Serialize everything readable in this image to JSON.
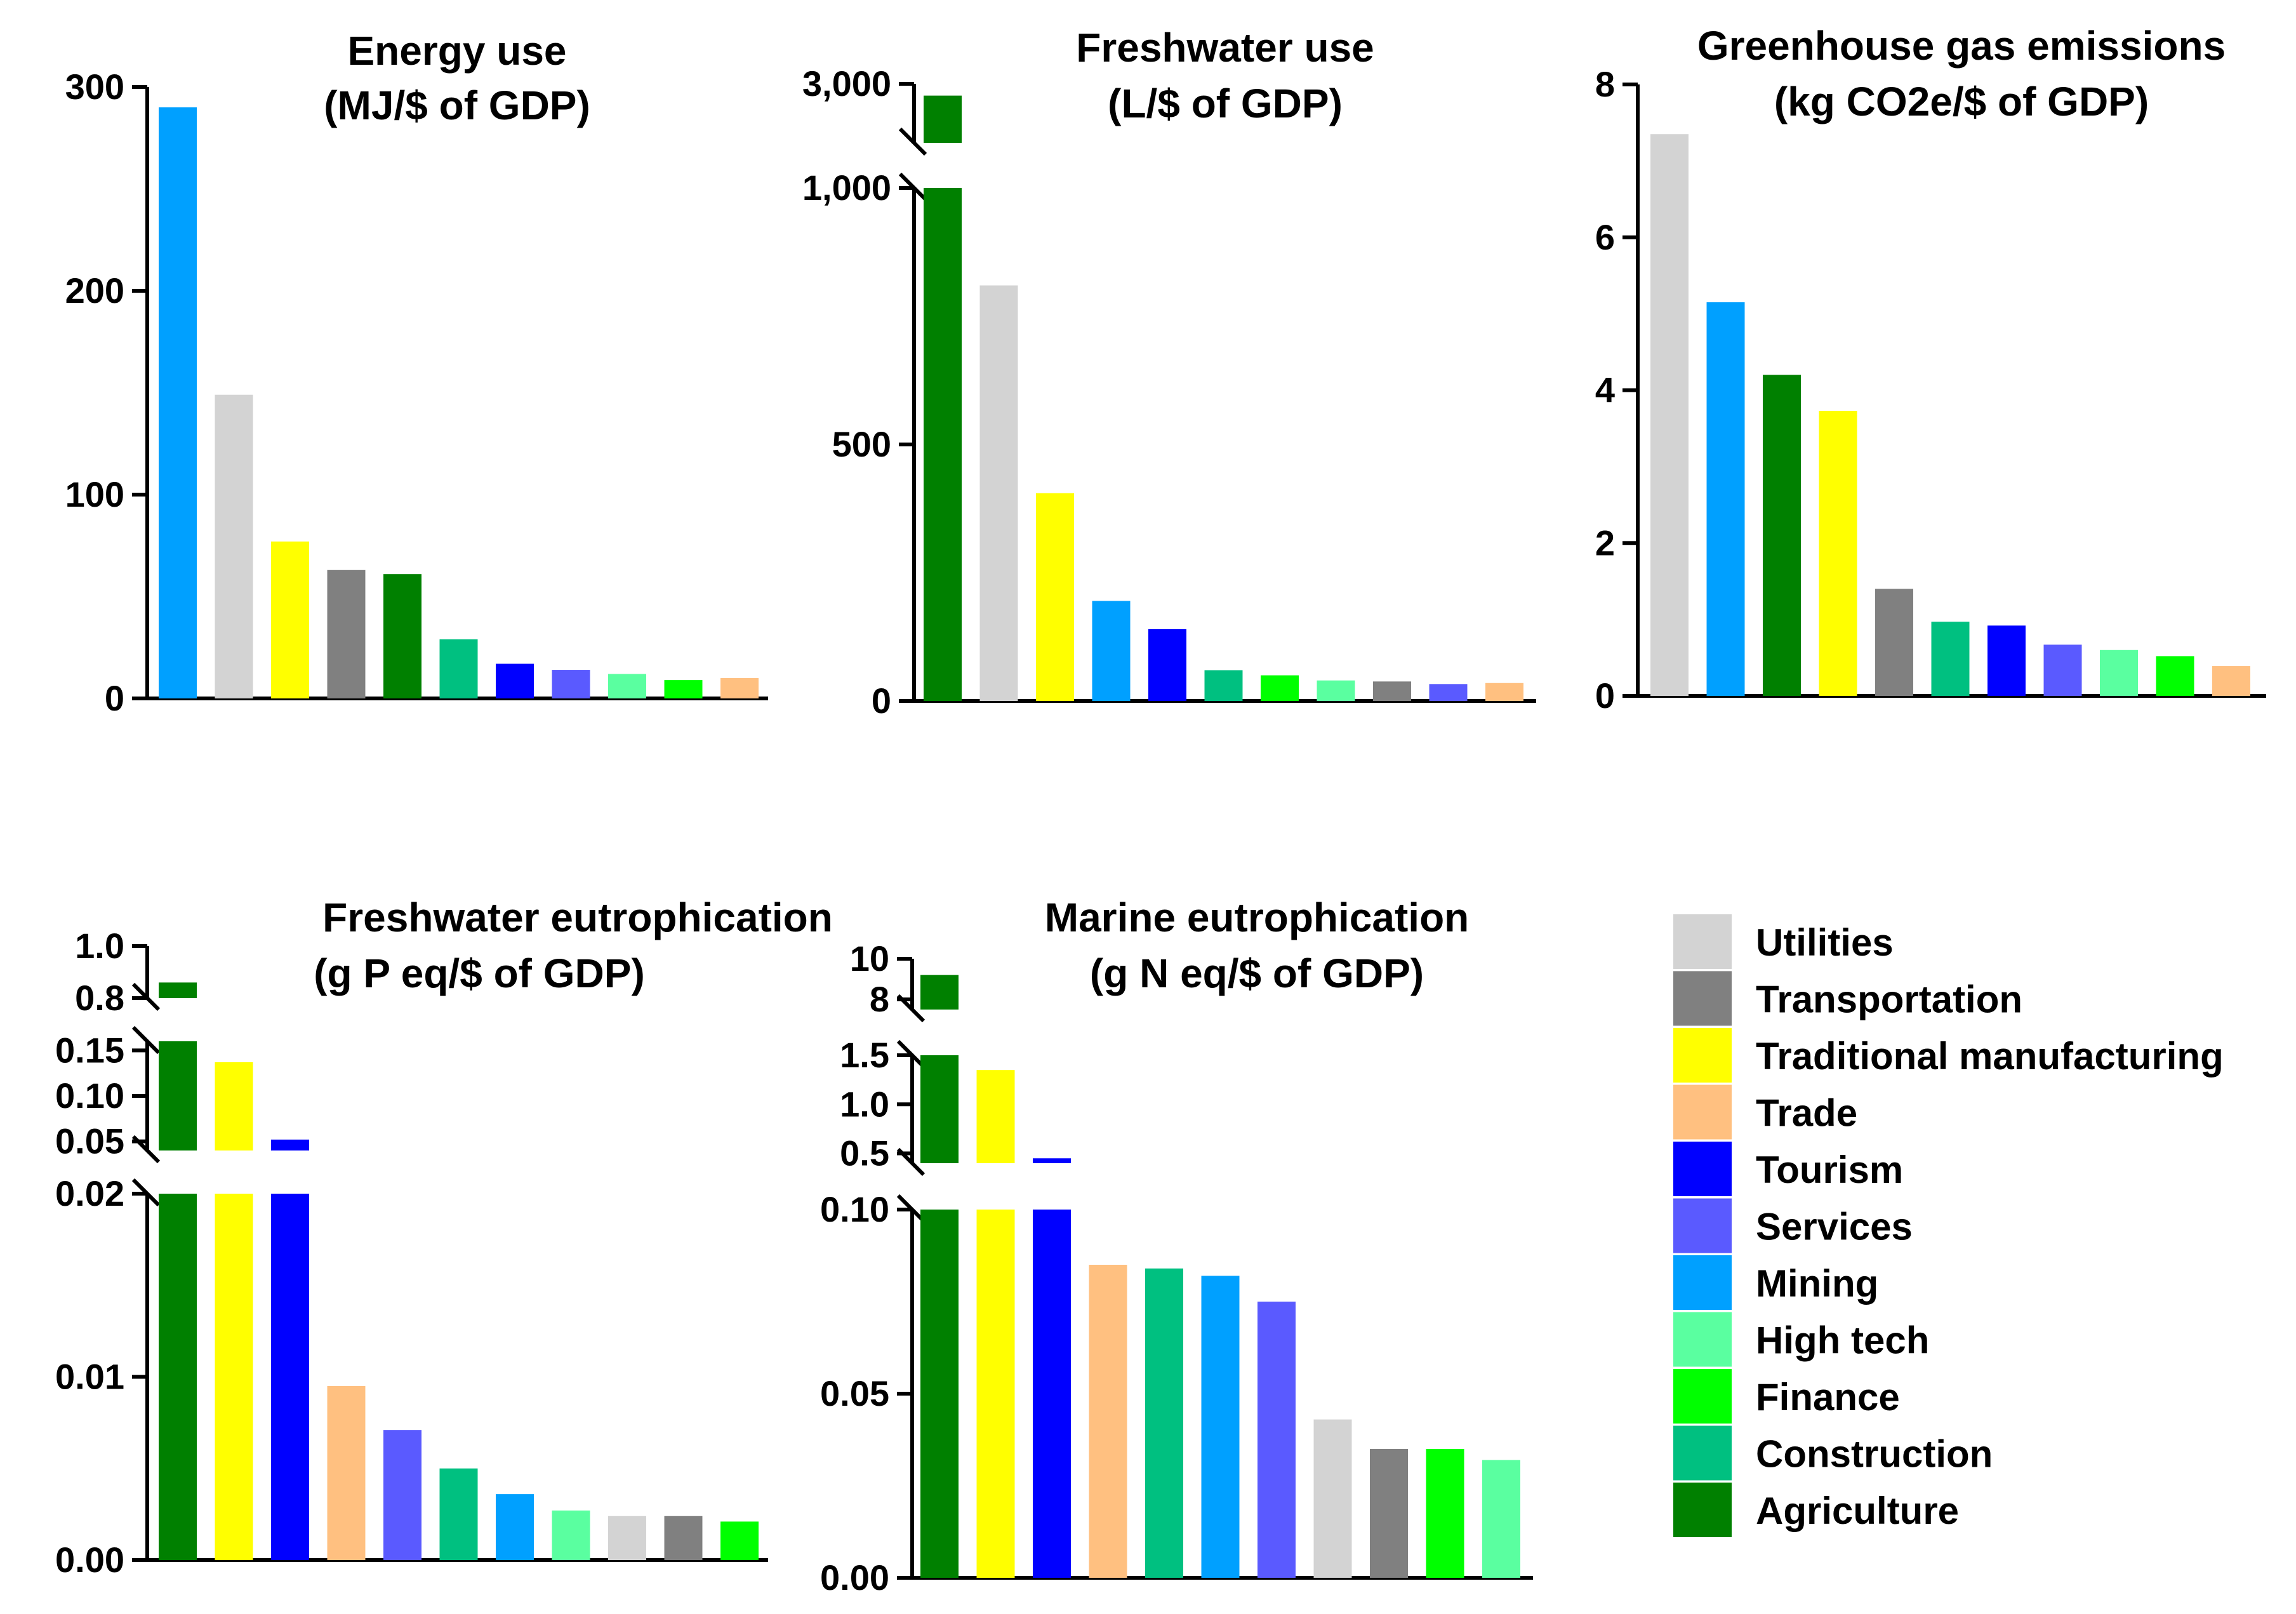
{
  "colors": {
    "Utilities": "#d3d3d3",
    "Transportation": "#808080",
    "Traditional manufacturing": "#ffff00",
    "Trade": "#ffc080",
    "Tourism": "#0000ff",
    "Services": "#5a5aff",
    "Mining": "#00a0ff",
    "High tech": "#5affa0",
    "Finance": "#00ff00",
    "Construction": "#00c080",
    "Agriculture": "#008000"
  },
  "legend": {
    "items": [
      "Utilities",
      "Transportation",
      "Traditional manufacturing",
      "Trade",
      "Tourism",
      "Services",
      "Mining",
      "High tech",
      "Finance",
      "Construction",
      "Agriculture"
    ]
  },
  "chart_data": [
    {
      "type": "bar",
      "title_lines": [
        "Energy use",
        "(MJ/$ of GDP)"
      ],
      "categories": [
        "Mining",
        "Utilities",
        "Traditional manufacturing",
        "Transportation",
        "Agriculture",
        "Construction",
        "Tourism",
        "Services",
        "High tech",
        "Finance",
        "Trade"
      ],
      "values": [
        290,
        149,
        77,
        63,
        61,
        29,
        17,
        14,
        12,
        9,
        10
      ],
      "ylim": [
        0,
        300
      ],
      "yticks": [
        0,
        100,
        200,
        300
      ],
      "ytick_labels": [
        "0",
        "100",
        "200",
        "300"
      ],
      "xlabel": "",
      "ylabel": ""
    },
    {
      "type": "bar",
      "title_lines": [
        "Freshwater use",
        "(L/$ of GDP)"
      ],
      "categories": [
        "Agriculture",
        "Utilities",
        "Traditional manufacturing",
        "Mining",
        "Tourism",
        "Construction",
        "Finance",
        "High tech",
        "Transportation",
        "Services",
        "Trade"
      ],
      "values": [
        2900,
        810,
        405,
        195,
        140,
        60,
        50,
        40,
        38,
        33,
        35
      ],
      "broken_axis": {
        "lower": [
          0,
          1000
        ],
        "upper": [
          2500,
          3000
        ]
      },
      "yticks": [
        0,
        500,
        1000,
        3000
      ],
      "ytick_labels": [
        "0",
        "500",
        "1,000",
        "3,000"
      ],
      "xlabel": "",
      "ylabel": ""
    },
    {
      "type": "bar",
      "title_lines": [
        "Greenhouse gas emissions",
        "(kg CO2e/$ of GDP)"
      ],
      "categories": [
        "Utilities",
        "Mining",
        "Agriculture",
        "Traditional manufacturing",
        "Transportation",
        "Construction",
        "Tourism",
        "Services",
        "High tech",
        "Finance",
        "Trade"
      ],
      "values": [
        7.35,
        5.15,
        4.2,
        3.73,
        1.4,
        0.97,
        0.92,
        0.67,
        0.6,
        0.52,
        0.39
      ],
      "ylim": [
        0,
        8
      ],
      "yticks": [
        0,
        2,
        4,
        6,
        8
      ],
      "ytick_labels": [
        "0",
        "2",
        "4",
        "6",
        "8"
      ],
      "xlabel": "",
      "ylabel": ""
    },
    {
      "type": "bar",
      "title_lines": [
        "Freshwater eutrophication",
        "(g P eq/$ of GDP)"
      ],
      "categories": [
        "Agriculture",
        "Traditional manufacturing",
        "Tourism",
        "Trade",
        "Services",
        "Construction",
        "Mining",
        "High tech",
        "Utilities",
        "Transportation",
        "Finance"
      ],
      "values": [
        0.86,
        0.137,
        0.052,
        0.0095,
        0.0071,
        0.005,
        0.0036,
        0.0027,
        0.0024,
        0.0024,
        0.0021
      ],
      "broken_axis": {
        "lower": [
          0,
          0.02
        ],
        "middle": [
          0.04,
          0.16
        ],
        "upper": [
          0.8,
          1.0
        ]
      },
      "yticks": [
        0,
        0.01,
        0.02,
        0.05,
        0.1,
        0.15,
        0.8,
        1.0
      ],
      "ytick_labels": [
        "0.00",
        "0.01",
        "0.02",
        "0.05",
        "0.10",
        "0.15",
        "0.8",
        "1.0"
      ],
      "xlabel": "",
      "ylabel": ""
    },
    {
      "type": "bar",
      "title_lines": [
        "Marine eutrophication",
        "(g N eq/$ of GDP)"
      ],
      "categories": [
        "Agriculture",
        "Traditional manufacturing",
        "Tourism",
        "Trade",
        "Construction",
        "Mining",
        "Services",
        "Utilities",
        "Transportation",
        "Finance",
        "High tech"
      ],
      "values": [
        9.2,
        1.35,
        0.45,
        0.085,
        0.084,
        0.082,
        0.075,
        0.043,
        0.035,
        0.035,
        0.032
      ],
      "broken_axis": {
        "lower": [
          0,
          0.1
        ],
        "middle": [
          0.4,
          1.5
        ],
        "upper": [
          7.5,
          10
        ]
      },
      "yticks": [
        0,
        0.05,
        0.1,
        0.5,
        1.0,
        1.5,
        8,
        10
      ],
      "ytick_labels": [
        "0.00",
        "0.05",
        "0.10",
        "0.5",
        "1.0",
        "1.5",
        "8",
        "10"
      ],
      "xlabel": "",
      "ylabel": ""
    }
  ]
}
